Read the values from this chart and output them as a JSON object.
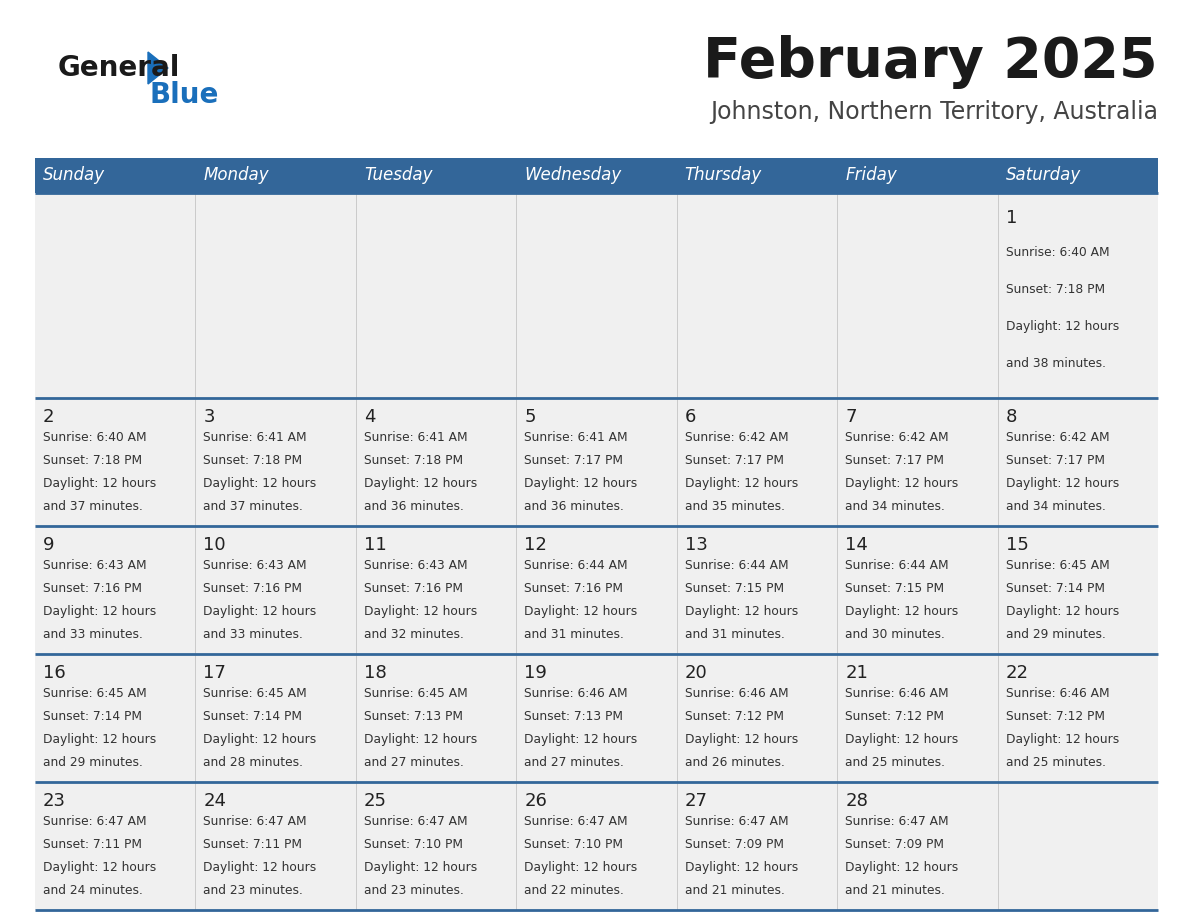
{
  "title": "February 2025",
  "subtitle": "Johnston, Northern Territory, Australia",
  "days_of_week": [
    "Sunday",
    "Monday",
    "Tuesday",
    "Wednesday",
    "Thursday",
    "Friday",
    "Saturday"
  ],
  "header_bg": "#336699",
  "header_text": "#FFFFFF",
  "cell_bg": "#F0F0F0",
  "cell_bg_empty": "#FFFFFF",
  "separator_color": "#336699",
  "title_color": "#1a1a1a",
  "subtitle_color": "#444444",
  "day_num_color": "#222222",
  "cell_text_color": "#333333",
  "logo_general_color": "#1a1a1a",
  "logo_blue_color": "#1a6fbb",
  "calendar": [
    [
      {
        "day": 0,
        "info": ""
      },
      {
        "day": 0,
        "info": ""
      },
      {
        "day": 0,
        "info": ""
      },
      {
        "day": 0,
        "info": ""
      },
      {
        "day": 0,
        "info": ""
      },
      {
        "day": 0,
        "info": ""
      },
      {
        "day": 1,
        "info": "Sunrise: 6:40 AM\nSunset: 7:18 PM\nDaylight: 12 hours\nand 38 minutes."
      }
    ],
    [
      {
        "day": 2,
        "info": "Sunrise: 6:40 AM\nSunset: 7:18 PM\nDaylight: 12 hours\nand 37 minutes."
      },
      {
        "day": 3,
        "info": "Sunrise: 6:41 AM\nSunset: 7:18 PM\nDaylight: 12 hours\nand 37 minutes."
      },
      {
        "day": 4,
        "info": "Sunrise: 6:41 AM\nSunset: 7:18 PM\nDaylight: 12 hours\nand 36 minutes."
      },
      {
        "day": 5,
        "info": "Sunrise: 6:41 AM\nSunset: 7:17 PM\nDaylight: 12 hours\nand 36 minutes."
      },
      {
        "day": 6,
        "info": "Sunrise: 6:42 AM\nSunset: 7:17 PM\nDaylight: 12 hours\nand 35 minutes."
      },
      {
        "day": 7,
        "info": "Sunrise: 6:42 AM\nSunset: 7:17 PM\nDaylight: 12 hours\nand 34 minutes."
      },
      {
        "day": 8,
        "info": "Sunrise: 6:42 AM\nSunset: 7:17 PM\nDaylight: 12 hours\nand 34 minutes."
      }
    ],
    [
      {
        "day": 9,
        "info": "Sunrise: 6:43 AM\nSunset: 7:16 PM\nDaylight: 12 hours\nand 33 minutes."
      },
      {
        "day": 10,
        "info": "Sunrise: 6:43 AM\nSunset: 7:16 PM\nDaylight: 12 hours\nand 33 minutes."
      },
      {
        "day": 11,
        "info": "Sunrise: 6:43 AM\nSunset: 7:16 PM\nDaylight: 12 hours\nand 32 minutes."
      },
      {
        "day": 12,
        "info": "Sunrise: 6:44 AM\nSunset: 7:16 PM\nDaylight: 12 hours\nand 31 minutes."
      },
      {
        "day": 13,
        "info": "Sunrise: 6:44 AM\nSunset: 7:15 PM\nDaylight: 12 hours\nand 31 minutes."
      },
      {
        "day": 14,
        "info": "Sunrise: 6:44 AM\nSunset: 7:15 PM\nDaylight: 12 hours\nand 30 minutes."
      },
      {
        "day": 15,
        "info": "Sunrise: 6:45 AM\nSunset: 7:14 PM\nDaylight: 12 hours\nand 29 minutes."
      }
    ],
    [
      {
        "day": 16,
        "info": "Sunrise: 6:45 AM\nSunset: 7:14 PM\nDaylight: 12 hours\nand 29 minutes."
      },
      {
        "day": 17,
        "info": "Sunrise: 6:45 AM\nSunset: 7:14 PM\nDaylight: 12 hours\nand 28 minutes."
      },
      {
        "day": 18,
        "info": "Sunrise: 6:45 AM\nSunset: 7:13 PM\nDaylight: 12 hours\nand 27 minutes."
      },
      {
        "day": 19,
        "info": "Sunrise: 6:46 AM\nSunset: 7:13 PM\nDaylight: 12 hours\nand 27 minutes."
      },
      {
        "day": 20,
        "info": "Sunrise: 6:46 AM\nSunset: 7:12 PM\nDaylight: 12 hours\nand 26 minutes."
      },
      {
        "day": 21,
        "info": "Sunrise: 6:46 AM\nSunset: 7:12 PM\nDaylight: 12 hours\nand 25 minutes."
      },
      {
        "day": 22,
        "info": "Sunrise: 6:46 AM\nSunset: 7:12 PM\nDaylight: 12 hours\nand 25 minutes."
      }
    ],
    [
      {
        "day": 23,
        "info": "Sunrise: 6:47 AM\nSunset: 7:11 PM\nDaylight: 12 hours\nand 24 minutes."
      },
      {
        "day": 24,
        "info": "Sunrise: 6:47 AM\nSunset: 7:11 PM\nDaylight: 12 hours\nand 23 minutes."
      },
      {
        "day": 25,
        "info": "Sunrise: 6:47 AM\nSunset: 7:10 PM\nDaylight: 12 hours\nand 23 minutes."
      },
      {
        "day": 26,
        "info": "Sunrise: 6:47 AM\nSunset: 7:10 PM\nDaylight: 12 hours\nand 22 minutes."
      },
      {
        "day": 27,
        "info": "Sunrise: 6:47 AM\nSunset: 7:09 PM\nDaylight: 12 hours\nand 21 minutes."
      },
      {
        "day": 28,
        "info": "Sunrise: 6:47 AM\nSunset: 7:09 PM\nDaylight: 12 hours\nand 21 minutes."
      },
      {
        "day": 0,
        "info": ""
      }
    ]
  ],
  "row_heights": [
    1.6,
    1.0,
    1.0,
    1.0,
    1.0
  ]
}
